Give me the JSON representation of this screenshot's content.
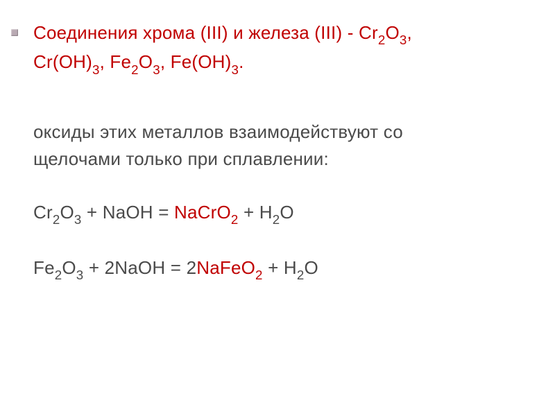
{
  "slide": {
    "heading_color": "#c00000",
    "body_color": "#4a4a4a",
    "background_color": "#ffffff",
    "font_size_pt": 20,
    "heading_line1_pre": "Соединения хрома (III) и железа (III) - ",
    "heading_line1_f1": "Cr",
    "heading_line1_s1": "2",
    "heading_line1_f2": "O",
    "heading_line1_s2": "3",
    "heading_line1_f3": ",",
    "heading_line2_f1": "Cr(OH)",
    "heading_line2_s1": "3",
    "heading_line2_f2": ", Fe",
    "heading_line2_s2": "2",
    "heading_line2_f3": "O",
    "heading_line2_s3": "3",
    "heading_line2_f4": ", Fe(OH)",
    "heading_line2_s4": "3",
    "heading_line2_f5": ".",
    "para_line1": "оксиды этих металлов взаимодействуют со",
    "para_line2": "щелочами только при сплавлении:",
    "eq1_f1": "Cr",
    "eq1_s1": "2",
    "eq1_f2": "O",
    "eq1_s2": "3",
    "eq1_f3": " + NaOH  =  ",
    "eq1_hi1": "NaCrO",
    "eq1_hi_s1": "2",
    "eq1_f4": " + H",
    "eq1_s3": "2",
    "eq1_f5": "O",
    "eq2_f1": "Fe",
    "eq2_s1": "2",
    "eq2_f2": "O",
    "eq2_s2": "3",
    "eq2_f3": " + 2NaOH  =  2",
    "eq2_hi1": "NaFeO",
    "eq2_hi_s1": "2",
    "eq2_f4": " + H",
    "eq2_s3": "2",
    "eq2_f5": "O"
  }
}
